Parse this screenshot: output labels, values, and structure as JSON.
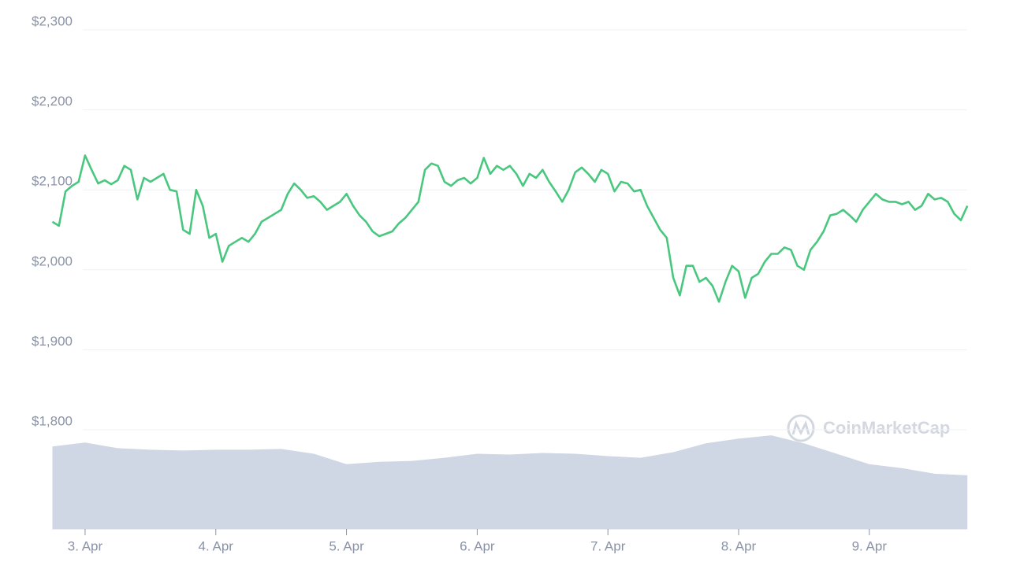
{
  "chart_data": {
    "type": "line",
    "x": [
      2.75,
      2.8,
      2.85,
      2.9,
      2.95,
      3.0,
      3.05,
      3.1,
      3.15,
      3.2,
      3.25,
      3.3,
      3.35,
      3.4,
      3.45,
      3.5,
      3.55,
      3.6,
      3.65,
      3.7,
      3.75,
      3.8,
      3.85,
      3.9,
      3.95,
      4.0,
      4.05,
      4.1,
      4.15,
      4.2,
      4.25,
      4.3,
      4.35,
      4.4,
      4.45,
      4.5,
      4.55,
      4.6,
      4.65,
      4.7,
      4.75,
      4.8,
      4.85,
      4.9,
      4.95,
      5.0,
      5.05,
      5.1,
      5.15,
      5.2,
      5.25,
      5.3,
      5.35,
      5.4,
      5.45,
      5.5,
      5.55,
      5.6,
      5.65,
      5.7,
      5.75,
      5.8,
      5.85,
      5.9,
      5.95,
      6.0,
      6.05,
      6.1,
      6.15,
      6.2,
      6.25,
      6.3,
      6.35,
      6.4,
      6.45,
      6.5,
      6.55,
      6.6,
      6.65,
      6.7,
      6.75,
      6.8,
      6.85,
      6.9,
      6.95,
      7.0,
      7.05,
      7.1,
      7.15,
      7.2,
      7.25,
      7.3,
      7.35,
      7.4,
      7.45,
      7.5,
      7.55,
      7.6,
      7.65,
      7.7,
      7.75,
      7.8,
      7.85,
      7.9,
      7.95,
      8.0,
      8.05,
      8.1,
      8.15,
      8.2,
      8.25,
      8.3,
      8.35,
      8.4,
      8.45,
      8.5,
      8.55,
      8.6,
      8.65,
      8.7,
      8.75,
      8.8,
      8.85,
      8.9,
      8.95,
      9.0,
      9.05,
      9.1,
      9.15,
      9.2,
      9.25,
      9.3,
      9.35,
      9.4,
      9.45,
      9.5,
      9.55,
      9.6,
      9.65,
      9.7,
      9.75
    ],
    "series": [
      {
        "color": "#4ac77f",
        "values": [
          2060,
          2055,
          2098,
          2105,
          2110,
          2143,
          2125,
          2108,
          2112,
          2107,
          2112,
          2130,
          2125,
          2088,
          2115,
          2110,
          2115,
          2120,
          2100,
          2098,
          2050,
          2045,
          2100,
          2080,
          2040,
          2045,
          2010,
          2030,
          2035,
          2040,
          2035,
          2045,
          2060,
          2065,
          2070,
          2075,
          2095,
          2108,
          2100,
          2090,
          2092,
          2085,
          2075,
          2080,
          2085,
          2095,
          2080,
          2068,
          2060,
          2048,
          2042,
          2045,
          2048,
          2058,
          2065,
          2075,
          2085,
          2125,
          2133,
          2130,
          2110,
          2105,
          2112,
          2115,
          2108,
          2115,
          2140,
          2120,
          2130,
          2125,
          2130,
          2120,
          2105,
          2120,
          2115,
          2125,
          2110,
          2098,
          2085,
          2100,
          2122,
          2128,
          2120,
          2110,
          2125,
          2120,
          2098,
          2110,
          2108,
          2098,
          2100,
          2080,
          2065,
          2050,
          2040,
          1990,
          1968,
          2005,
          2005,
          1985,
          1990,
          1980,
          1960,
          1985,
          2005,
          1998,
          1965,
          1990,
          1995,
          2010,
          2020,
          2020,
          2028,
          2025,
          2005,
          2000,
          2025,
          2035,
          2048,
          2068,
          2070,
          2075,
          2068,
          2060,
          2075,
          2085,
          2095,
          2088,
          2085,
          2085,
          2082,
          2085,
          2075,
          2080,
          2095,
          2088,
          2090,
          2085,
          2070,
          2062,
          2080
        ]
      }
    ],
    "volume": {
      "type": "area",
      "color": "#cfd6e4",
      "x": [
        2.75,
        3.0,
        3.25,
        3.5,
        3.75,
        4.0,
        4.25,
        4.5,
        4.75,
        5.0,
        5.25,
        5.5,
        5.75,
        6.0,
        6.25,
        6.5,
        6.75,
        7.0,
        7.25,
        7.5,
        7.75,
        8.0,
        8.25,
        8.5,
        8.75,
        9.0,
        9.25,
        9.5,
        9.75
      ],
      "values": [
        1779,
        1784,
        1777,
        1775,
        1774,
        1775,
        1775,
        1776,
        1770,
        1757,
        1760,
        1761,
        1765,
        1770,
        1769,
        1771,
        1770,
        1767,
        1765,
        1772,
        1783,
        1789,
        1793,
        1783,
        1770,
        1757,
        1752,
        1745,
        1743
      ]
    },
    "xlim": [
      2.747,
      9.749
    ],
    "xticks": [
      {
        "value": 3,
        "label": "3. Apr"
      },
      {
        "value": 4,
        "label": "4. Apr"
      },
      {
        "value": 5,
        "label": "5. Apr"
      },
      {
        "value": 6,
        "label": "6. Apr"
      },
      {
        "value": 7,
        "label": "7. Apr"
      },
      {
        "value": 8,
        "label": "8. Apr"
      },
      {
        "value": 9,
        "label": "9. Apr"
      }
    ],
    "ylim": [
      1676,
      2300
    ],
    "yticks": [
      {
        "value": 1800,
        "label": "$1,800"
      },
      {
        "value": 1900,
        "label": "$1,900"
      },
      {
        "value": 2000,
        "label": "$2,000"
      },
      {
        "value": 2100,
        "label": "$2,100"
      },
      {
        "value": 2200,
        "label": "$2,200"
      },
      {
        "value": 2300,
        "label": "$2,300"
      }
    ],
    "grid": true,
    "watermark": "CoinMarketCap"
  }
}
